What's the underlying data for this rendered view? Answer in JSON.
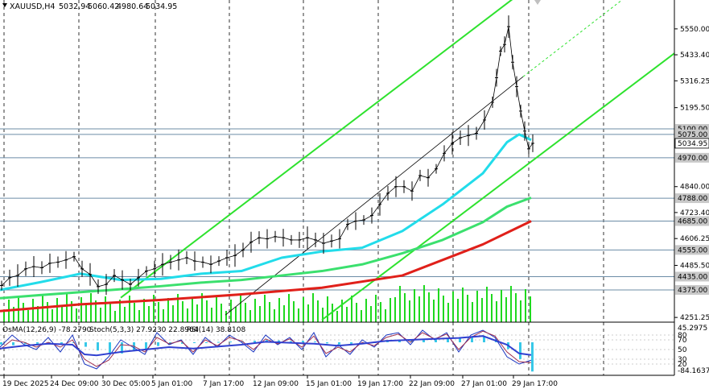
{
  "header": {
    "symbol": "XAUUSD,H4",
    "open": "5032.94",
    "high": "5060.42",
    "low": "4980.64",
    "close": "5034.95"
  },
  "indicator_header": {
    "osma": "OsMA(12,26,9) -78.2790",
    "stoch": "Stoch(5,3,3) 27.9230 22.8964",
    "rsi": "RSI(14) 38.8108"
  },
  "colors": {
    "ema_fast": "#22dcea",
    "ema_mid": "#3be06e",
    "ema_slow": "#e0201a",
    "channel": "#2ee22e",
    "volume": "#1fd81f",
    "histogram": "#38c8e8",
    "stoch_main": "#1a35c0",
    "stoch_signal": "#a03050",
    "rsi": "#3040d0",
    "level_line": "#6c8ca6",
    "price_label_bg": "#c8c8c8"
  },
  "chart_data": [
    {
      "type": "line",
      "title": "XAUUSD,H4",
      "ylim": [
        4230,
        5680
      ],
      "grid": true,
      "x_labels": [
        "19 Dec 2025",
        "24 Dec 09:00",
        "30 Dec 05:00",
        "5 Jan 01:00",
        "7 Jan 17:00",
        "12 Jan 09:00",
        "15 Jan 01:00",
        "19 Jan 17:00",
        "22 Jan 09:00",
        "27 Jan 01:00",
        "29 Jan 17:00"
      ],
      "y_ticks": [
        "5550.00",
        "5433.40",
        "5316.25",
        "5195.50",
        "4840.00",
        "4723.40",
        "4606.25",
        "4485.50",
        "4251.25"
      ],
      "price_labels": [
        "5100.00",
        "5075.00",
        "5034.95",
        "4970.00",
        "4788.00",
        "4685.00",
        "4555.00",
        "4435.00",
        "4375.00"
      ],
      "current_price": 5034.95,
      "level_lines": [
        5100,
        5075,
        4970,
        4788,
        4685,
        4555,
        4435,
        4375
      ],
      "series": [
        {
          "name": "",
          "role": "price",
          "x": [
            0,
            10,
            20,
            30,
            40,
            50,
            60,
            70,
            80,
            90,
            100,
            110,
            120,
            130,
            140,
            150,
            160,
            170,
            180,
            190,
            200,
            210,
            220,
            230,
            240,
            250,
            260,
            270,
            280,
            290,
            300,
            310,
            320,
            330,
            340,
            350,
            360,
            370,
            380,
            390,
            400,
            410,
            420,
            430,
            440,
            450,
            460,
            470,
            480,
            490,
            500,
            510,
            520,
            530,
            540,
            550,
            560,
            570,
            580,
            590,
            600,
            610,
            615,
            620,
            625,
            630,
            635,
            640,
            645,
            650,
            655,
            660
          ],
          "values": [
            4395,
            4430,
            4440,
            4470,
            4480,
            4475,
            4495,
            4500,
            4510,
            4525,
            4470,
            4445,
            4390,
            4400,
            4440,
            4420,
            4400,
            4430,
            4460,
            4470,
            4490,
            4500,
            4510,
            4520,
            4505,
            4500,
            4490,
            4505,
            4520,
            4530,
            4555,
            4590,
            4610,
            4605,
            4615,
            4610,
            4600,
            4600,
            4610,
            4600,
            4585,
            4595,
            4605,
            4670,
            4685,
            4690,
            4710,
            4760,
            4810,
            4840,
            4840,
            4820,
            4890,
            4880,
            4920,
            4990,
            5035,
            5060,
            5070,
            5080,
            5140,
            5220,
            5330,
            5450,
            5480,
            5560,
            5400,
            5290,
            5180,
            5090,
            5010,
            5035
          ]
        },
        {
          "name": "",
          "role": "ema_fast",
          "x": [
            0,
            50,
            100,
            150,
            200,
            250,
            300,
            350,
            400,
            450,
            500,
            550,
            600,
            630,
            645,
            660
          ],
          "values": [
            4375,
            4410,
            4448,
            4420,
            4425,
            4448,
            4460,
            4520,
            4548,
            4565,
            4640,
            4760,
            4900,
            5040,
            5075,
            5050
          ]
        },
        {
          "name": "",
          "role": "ema_mid",
          "x": [
            0,
            50,
            100,
            150,
            200,
            250,
            300,
            350,
            400,
            450,
            500,
            550,
            600,
            630,
            660
          ],
          "values": [
            4338,
            4352,
            4365,
            4378,
            4392,
            4408,
            4420,
            4440,
            4460,
            4490,
            4540,
            4600,
            4680,
            4750,
            4790
          ]
        },
        {
          "name": "",
          "role": "ema_slow",
          "x": [
            0,
            100,
            200,
            300,
            400,
            500,
            600,
            660
          ],
          "values": [
            4280,
            4310,
            4330,
            4355,
            4385,
            4440,
            4580,
            4685
          ]
        }
      ]
    },
    {
      "type": "bar",
      "title": "OsMA(12,26,9) -78.2790",
      "ylim": [
        -84.1637,
        45.2975
      ],
      "y_ticks": [
        "45.2975",
        "-84.1637"
      ],
      "x": [
        0,
        15,
        30,
        45,
        60,
        75,
        90,
        105,
        120,
        135,
        150,
        165,
        180,
        195,
        210,
        225,
        240,
        255,
        270,
        285,
        300,
        315,
        330,
        345,
        360,
        375,
        390,
        405,
        420,
        435,
        450,
        465,
        480,
        495,
        510,
        525,
        540,
        555,
        570,
        585,
        600,
        615,
        630,
        645,
        660
      ],
      "values": [
        -6,
        -8,
        -5,
        -4,
        -2,
        -3,
        -1,
        -12,
        -22,
        -28,
        -30,
        -24,
        -18,
        -10,
        -6,
        -4,
        -2,
        -1,
        1,
        2,
        3,
        4,
        6,
        5,
        3,
        4,
        2,
        -3,
        -6,
        -4,
        -2,
        0,
        3,
        5,
        7,
        8,
        9,
        10,
        12,
        14,
        15,
        8,
        -18,
        -45,
        -78.279
      ]
    },
    {
      "type": "line",
      "title": "Stoch(5,3,3) 27.9230 22.8964, RSI(14) 38.8108",
      "ylim": [
        0,
        100
      ],
      "y_ticks": [
        "80",
        "70",
        "50",
        "30",
        "20"
      ],
      "series": [
        {
          "name": "",
          "role": "stoch_main",
          "x": [
            0,
            15,
            30,
            45,
            60,
            75,
            90,
            105,
            120,
            135,
            150,
            165,
            180,
            195,
            210,
            225,
            240,
            255,
            270,
            285,
            300,
            315,
            330,
            345,
            360,
            375,
            390,
            405,
            420,
            435,
            450,
            465,
            480,
            495,
            510,
            525,
            540,
            555,
            570,
            585,
            600,
            615,
            630,
            645,
            660
          ],
          "values": [
            55,
            80,
            60,
            50,
            75,
            45,
            80,
            20,
            10,
            35,
            70,
            55,
            40,
            85,
            60,
            70,
            40,
            75,
            55,
            80,
            65,
            45,
            80,
            60,
            75,
            50,
            85,
            35,
            60,
            40,
            70,
            55,
            80,
            85,
            60,
            90,
            70,
            85,
            45,
            80,
            90,
            75,
            35,
            20,
            27.923
          ]
        },
        {
          "name": "",
          "role": "stoch_signal",
          "x": [
            0,
            15,
            30,
            45,
            60,
            75,
            90,
            105,
            120,
            135,
            150,
            165,
            180,
            195,
            210,
            225,
            240,
            255,
            270,
            285,
            300,
            315,
            330,
            345,
            360,
            375,
            390,
            405,
            420,
            435,
            450,
            465,
            480,
            495,
            510,
            525,
            540,
            555,
            570,
            585,
            600,
            615,
            630,
            645,
            660
          ],
          "values": [
            50,
            70,
            65,
            55,
            65,
            55,
            70,
            30,
            15,
            28,
            60,
            58,
            45,
            75,
            62,
            68,
            45,
            70,
            58,
            75,
            68,
            50,
            72,
            62,
            72,
            55,
            78,
            42,
            55,
            45,
            65,
            58,
            75,
            82,
            65,
            85,
            72,
            82,
            50,
            75,
            88,
            78,
            45,
            25,
            22.8964
          ]
        },
        {
          "name": "",
          "role": "rsi",
          "x": [
            0,
            30,
            60,
            90,
            105,
            120,
            150,
            180,
            210,
            240,
            270,
            300,
            330,
            360,
            390,
            420,
            450,
            480,
            510,
            540,
            570,
            600,
            630,
            645,
            660
          ],
          "values": [
            52,
            58,
            62,
            60,
            40,
            38,
            45,
            50,
            55,
            52,
            56,
            60,
            66,
            64,
            62,
            58,
            62,
            68,
            70,
            72,
            74,
            78,
            60,
            42,
            38.8108
          ]
        }
      ]
    }
  ]
}
